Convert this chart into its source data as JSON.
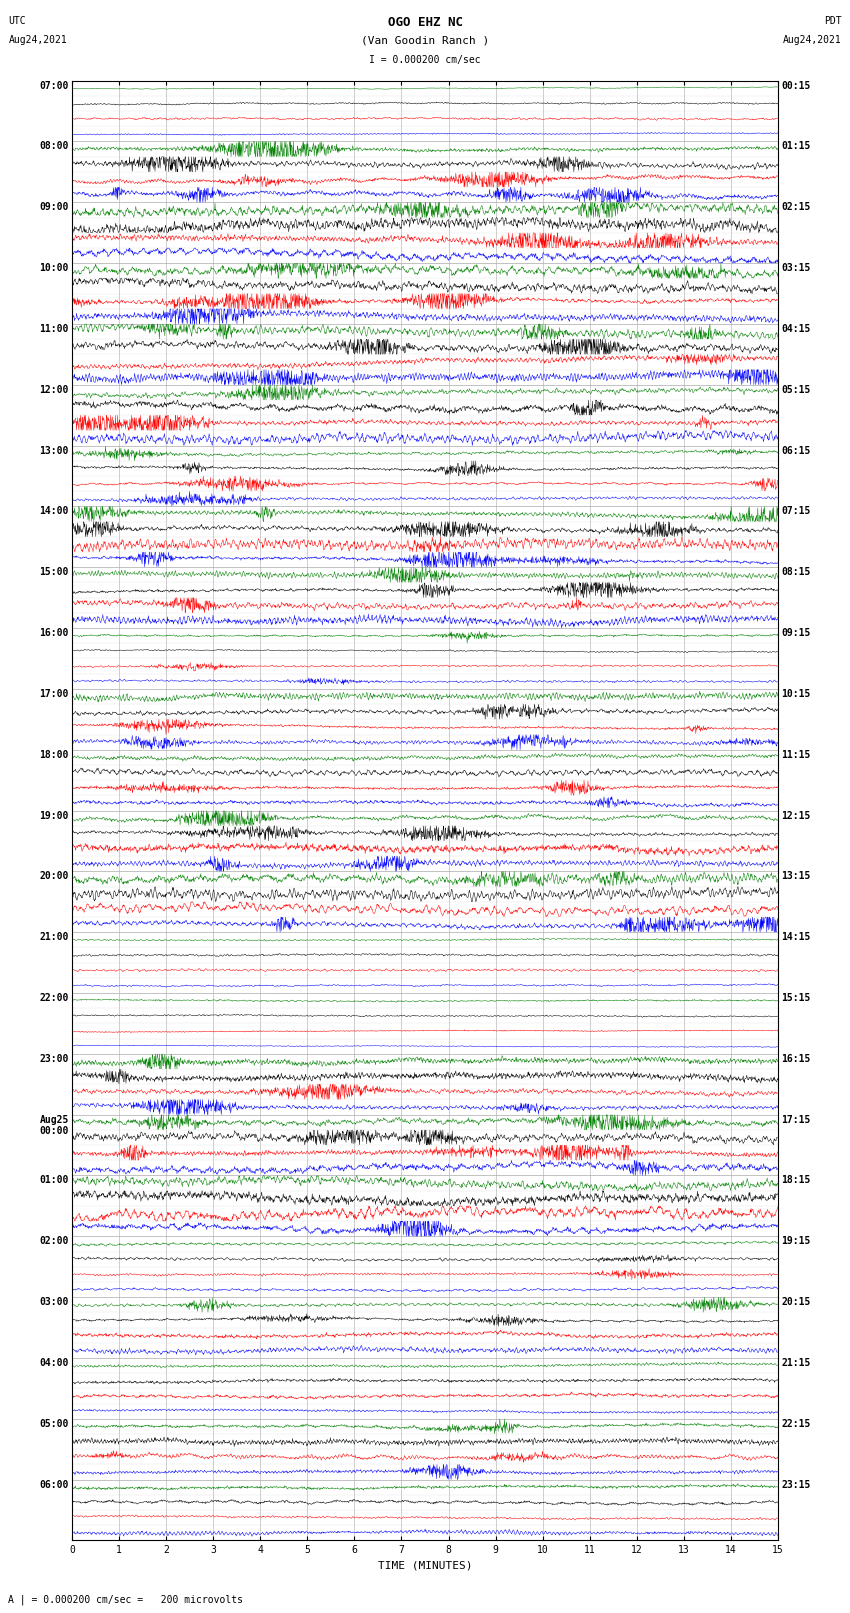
{
  "title_line1": "OGO EHZ NC",
  "title_line2": "(Van Goodin Ranch )",
  "scale_text": "I = 0.000200 cm/sec",
  "left_header_line1": "UTC",
  "left_header_line2": "Aug24,2021",
  "right_header_line1": "PDT",
  "right_header_line2": "Aug24,2021",
  "bottom_label": "TIME (MINUTES)",
  "bottom_note": "A | = 0.000200 cm/sec =   200 microvolts",
  "x_ticks": [
    0,
    1,
    2,
    3,
    4,
    5,
    6,
    7,
    8,
    9,
    10,
    11,
    12,
    13,
    14,
    15
  ],
  "utc_times": [
    "07:00",
    "08:00",
    "09:00",
    "10:00",
    "11:00",
    "12:00",
    "13:00",
    "14:00",
    "15:00",
    "16:00",
    "17:00",
    "18:00",
    "19:00",
    "20:00",
    "21:00",
    "22:00",
    "23:00",
    "Aug25\n00:00",
    "01:00",
    "02:00",
    "03:00",
    "04:00",
    "05:00",
    "06:00"
  ],
  "pdt_times": [
    "00:15",
    "01:15",
    "02:15",
    "03:15",
    "04:15",
    "05:15",
    "06:15",
    "07:15",
    "08:15",
    "09:15",
    "10:15",
    "11:15",
    "12:15",
    "13:15",
    "14:15",
    "15:15",
    "16:15",
    "17:15",
    "18:15",
    "19:15",
    "20:15",
    "21:15",
    "22:15",
    "23:15"
  ],
  "n_hours": 24,
  "traces_per_hour": 4,
  "colors_per_hour": [
    [
      "green",
      "black",
      "red",
      "blue"
    ],
    [
      "green",
      "black",
      "red",
      "blue"
    ],
    [
      "green",
      "black",
      "red",
      "blue"
    ],
    [
      "green",
      "black",
      "red",
      "blue"
    ],
    [
      "green",
      "black",
      "red",
      "blue"
    ],
    [
      "green",
      "black",
      "red",
      "blue"
    ],
    [
      "green",
      "black",
      "red",
      "blue"
    ],
    [
      "green",
      "black",
      "red",
      "blue"
    ],
    [
      "green",
      "black",
      "red",
      "blue"
    ],
    [
      "green",
      "black",
      "red",
      "blue"
    ],
    [
      "green",
      "black",
      "red",
      "blue"
    ],
    [
      "green",
      "black",
      "red",
      "blue"
    ],
    [
      "green",
      "black",
      "red",
      "blue"
    ],
    [
      "green",
      "black",
      "red",
      "blue"
    ],
    [
      "green",
      "black",
      "red",
      "blue"
    ],
    [
      "green",
      "black",
      "red",
      "blue"
    ],
    [
      "green",
      "black",
      "red",
      "blue"
    ],
    [
      "green",
      "black",
      "red",
      "blue"
    ],
    [
      "green",
      "black",
      "red",
      "blue"
    ],
    [
      "green",
      "black",
      "red",
      "blue"
    ],
    [
      "green",
      "black",
      "red",
      "blue"
    ],
    [
      "green",
      "black",
      "red",
      "blue"
    ],
    [
      "green",
      "black",
      "red",
      "blue"
    ],
    [
      "green",
      "black",
      "red",
      "blue"
    ]
  ],
  "fig_width": 8.5,
  "fig_height": 16.13,
  "bg_color": "white",
  "grid_color": "#aaaaaa",
  "font_size_labels": 7,
  "font_size_title": 9,
  "font_size_ticks": 7,
  "font_size_header": 7,
  "n_minutes": 15,
  "n_points": 1800
}
